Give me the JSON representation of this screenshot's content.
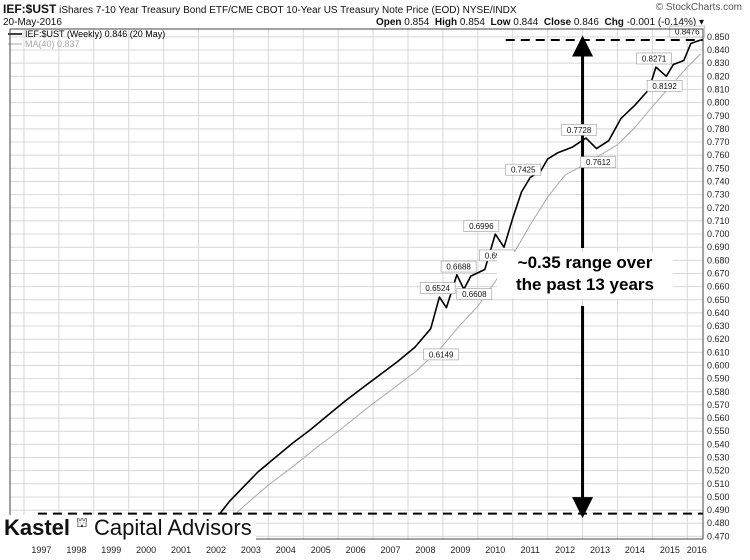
{
  "header": {
    "symbol": "IEF:$UST",
    "description": "iShares 7-10 Year Treasury Bond ETF/CME CBOT 10-Year US Treasury Note Price (EOD)  NYSE/INDX",
    "date": "20-May-2016",
    "brand": "© StockCharts.com",
    "ohlc": {
      "open_label": "Open",
      "open": "0.854",
      "high_label": "High",
      "high": "0.854",
      "low_label": "Low",
      "low": "0.844",
      "close_label": "Close",
      "close": "0.846",
      "chg_label": "Chg",
      "chg": "-0.001 (-0.14%)"
    }
  },
  "legend": {
    "price": "IEF:$UST (Weekly) 0.846 (20 May)",
    "ma": "MA(40) 0.837"
  },
  "callout": {
    "line1": "~0.35 range over",
    "line2": "the past 13 years"
  },
  "logo": {
    "bold": "Kastel",
    "rest": "Capital Advisors"
  },
  "colors": {
    "price": "#000000",
    "ma": "#a8a8a8",
    "grid": "#d8d8d8",
    "annotation": "#000000"
  },
  "chart_data": {
    "type": "line",
    "x_ticks": [
      "1997",
      "1998",
      "1999",
      "2000",
      "2001",
      "2002",
      "2003",
      "2004",
      "2005",
      "2006",
      "2007",
      "2008",
      "2009",
      "2010",
      "2011",
      "2012",
      "2013",
      "2014",
      "2015",
      "2016"
    ],
    "xlim": [
      1996.6,
      2016.45
    ],
    "ylim": [
      0.468,
      0.856
    ],
    "y_ticks": [
      "0.470",
      "0.480",
      "0.490",
      "0.500",
      "0.510",
      "0.520",
      "0.530",
      "0.540",
      "0.550",
      "0.560",
      "0.570",
      "0.580",
      "0.590",
      "0.600",
      "0.610",
      "0.620",
      "0.630",
      "0.640",
      "0.650",
      "0.660",
      "0.670",
      "0.680",
      "0.690",
      "0.700",
      "0.710",
      "0.720",
      "0.730",
      "0.740",
      "0.750",
      "0.760",
      "0.770",
      "0.780",
      "0.790",
      "0.800",
      "0.810",
      "0.820",
      "0.830",
      "0.840",
      "0.850"
    ],
    "grid": true,
    "legend_position": "top-left",
    "series": [
      {
        "name": "IEF:$UST (Weekly) 0.846 (20 May)",
        "x": [
          2002.6,
          2002.9,
          2003.3,
          2003.7,
          2004.2,
          2004.7,
          2005.2,
          2005.7,
          2006.2,
          2006.7,
          2007.2,
          2007.7,
          2008.2,
          2008.65,
          2008.9,
          2009.1,
          2009.4,
          2009.6,
          2009.8,
          2010.2,
          2010.5,
          2010.75,
          2011.0,
          2011.25,
          2011.5,
          2011.8,
          2012.0,
          2012.3,
          2012.7,
          2013.1,
          2013.4,
          2013.75,
          2014.1,
          2014.5,
          2014.9,
          2015.1,
          2015.4,
          2015.6,
          2015.9,
          2016.1,
          2016.38
        ],
        "y": [
          0.487,
          0.497,
          0.508,
          0.519,
          0.53,
          0.541,
          0.551,
          0.562,
          0.573,
          0.583,
          0.593,
          0.603,
          0.614,
          0.628,
          0.652,
          0.644,
          0.669,
          0.658,
          0.668,
          0.673,
          0.7,
          0.69,
          0.712,
          0.732,
          0.743,
          0.748,
          0.757,
          0.762,
          0.766,
          0.773,
          0.765,
          0.771,
          0.788,
          0.798,
          0.81,
          0.827,
          0.82,
          0.829,
          0.832,
          0.845,
          0.8476
        ]
      },
      {
        "name": "MA(40) 0.837",
        "x": [
          2002.7,
          2003.3,
          2004.0,
          2004.7,
          2005.4,
          2006.1,
          2006.8,
          2007.5,
          2008.2,
          2008.9,
          2009.5,
          2010.0,
          2010.5,
          2011.0,
          2011.5,
          2012.0,
          2012.5,
          2013.0,
          2013.5,
          2014.0,
          2014.5,
          2015.0,
          2015.5,
          2016.0,
          2016.38
        ],
        "y": [
          0.478,
          0.493,
          0.509,
          0.523,
          0.538,
          0.552,
          0.567,
          0.581,
          0.595,
          0.612,
          0.631,
          0.645,
          0.664,
          0.684,
          0.707,
          0.728,
          0.745,
          0.752,
          0.76,
          0.768,
          0.781,
          0.797,
          0.812,
          0.827,
          0.837
        ]
      }
    ],
    "annotations": [
      {
        "label": "0.8476",
        "x": 2016.0,
        "y": 0.8476
      },
      {
        "label": "0.8271",
        "x": 2015.05,
        "y": 0.8271
      },
      {
        "label": "0.8192",
        "x": 2015.35,
        "y": 0.8192
      },
      {
        "label": "0.7728",
        "x": 2012.9,
        "y": 0.7728
      },
      {
        "label": "0.7612",
        "x": 2013.45,
        "y": 0.7612
      },
      {
        "label": "0.7425",
        "x": 2011.3,
        "y": 0.7425
      },
      {
        "label": "0.6996",
        "x": 2010.1,
        "y": 0.6996
      },
      {
        "label": "0.6902",
        "x": 2010.55,
        "y": 0.6902
      },
      {
        "label": "0.6688",
        "x": 2009.45,
        "y": 0.6688
      },
      {
        "label": "0.6608",
        "x": 2009.9,
        "y": 0.6608
      },
      {
        "label": "0.6524",
        "x": 2008.85,
        "y": 0.6524
      },
      {
        "label": "0.6149",
        "x": 2008.95,
        "y": 0.6149
      }
    ],
    "reference_lines": [
      {
        "y": 0.8476,
        "x_start": 2010.8,
        "x_end": 2016.45
      },
      {
        "y": 0.4873,
        "x_start": 1997.4,
        "x_end": 2016.45
      }
    ],
    "range_arrow": {
      "x": 2013.0,
      "y_from": 0.4873,
      "y_to": 0.8476
    }
  }
}
